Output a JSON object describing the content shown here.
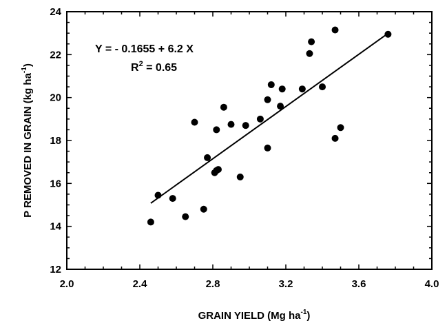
{
  "chart_data": {
    "type": "scatter",
    "xlabel": "GRAIN YIELD (Mg ha",
    "xlabel_sup": "-1",
    "xlabel_end": ")",
    "ylabel": "P REMOVED IN GRAIN (kg ha",
    "ylabel_sup": "-1",
    "ylabel_end": ")",
    "xlim": [
      2.0,
      4.0
    ],
    "ylim": [
      12,
      24
    ],
    "x_ticks": [
      "2.0",
      "2.4",
      "2.8",
      "3.2",
      "3.6",
      "4.0"
    ],
    "y_ticks": [
      "12",
      "14",
      "16",
      "18",
      "20",
      "22",
      "24"
    ],
    "grid": false,
    "annotation": {
      "equation": "Y = - 0.1655 + 6.2 X",
      "r2_prefix": "R",
      "r2_sup": "2",
      "r2_value": " = 0.65"
    },
    "trendline": {
      "x": [
        2.46,
        3.76
      ],
      "y": [
        15.08,
        22.99
      ]
    },
    "series": [
      {
        "x": [
          2.46,
          2.5,
          2.58,
          2.65,
          2.7,
          2.75,
          2.77,
          2.81,
          2.82,
          2.82,
          2.83,
          2.86,
          2.9,
          2.95,
          2.98,
          3.06,
          3.1,
          3.1,
          3.12,
          3.17,
          3.18,
          3.29,
          3.33,
          3.34,
          3.4,
          3.47,
          3.47,
          3.5,
          3.76
        ],
        "y": [
          14.2,
          15.45,
          15.3,
          14.45,
          18.85,
          14.8,
          17.2,
          16.5,
          18.5,
          16.6,
          16.65,
          19.55,
          18.75,
          16.3,
          18.7,
          19.0,
          17.65,
          19.9,
          20.6,
          19.6,
          20.4,
          20.4,
          22.05,
          22.6,
          20.5,
          23.15,
          18.1,
          18.6,
          22.95
        ]
      }
    ]
  }
}
